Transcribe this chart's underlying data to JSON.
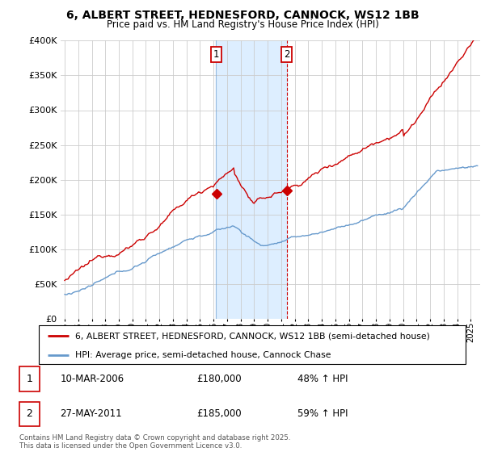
{
  "title": "6, ALBERT STREET, HEDNESFORD, CANNOCK, WS12 1BB",
  "subtitle": "Price paid vs. HM Land Registry's House Price Index (HPI)",
  "legend_line1": "6, ALBERT STREET, HEDNESFORD, CANNOCK, WS12 1BB (semi-detached house)",
  "legend_line2": "HPI: Average price, semi-detached house, Cannock Chase",
  "footnote": "Contains HM Land Registry data © Crown copyright and database right 2025.\nThis data is licensed under the Open Government Licence v3.0.",
  "sale1_date": "10-MAR-2006",
  "sale1_price": "£180,000",
  "sale1_pct": "48% ↑ HPI",
  "sale2_date": "27-MAY-2011",
  "sale2_price": "£185,000",
  "sale2_pct": "59% ↑ HPI",
  "red_color": "#cc0000",
  "blue_color": "#6699cc",
  "shade_color": "#ddeeff",
  "grid_color": "#cccccc",
  "ylim": [
    0,
    400000
  ],
  "yticks": [
    0,
    50000,
    100000,
    150000,
    200000,
    250000,
    300000,
    350000,
    400000
  ],
  "xlim_start": 1994.7,
  "xlim_end": 2025.7,
  "sale1_x": 2006.19,
  "sale2_x": 2011.4,
  "sale1_y_red": 180000,
  "sale2_y_red": 185000
}
